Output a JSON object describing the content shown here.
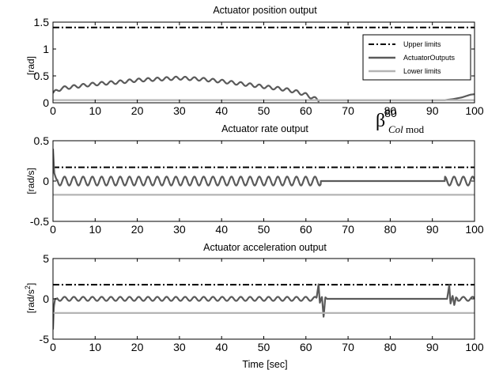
{
  "chart_data": [
    {
      "type": "line",
      "title": "Actuator position output",
      "ylabel": "[rad]",
      "xlabel": "",
      "xlim": [
        0,
        100
      ],
      "ylim": [
        0,
        1.5
      ],
      "xticks": [
        "0",
        "10",
        "20",
        "30",
        "40",
        "50",
        "60",
        "70",
        "80",
        "90",
        "100"
      ],
      "yticks": [
        "0",
        "0.5",
        "1",
        "1.5"
      ],
      "annotation": {
        "symbol": "β",
        "subscript": "Col",
        "subscript2": "mod",
        "text_x": 80
      },
      "legend": {
        "placement": "top-right",
        "entries": [
          "Upper limits",
          "ActuatorOutputs",
          "Lower limits"
        ]
      },
      "series": [
        {
          "name": "Upper limits",
          "style": "dashdot",
          "color": "#000000",
          "x": [
            0,
            100
          ],
          "y": [
            1.4,
            1.4
          ]
        },
        {
          "name": "ActuatorOutputs",
          "style": "solid",
          "color": "#5a5a5a",
          "x": [
            0,
            2,
            5,
            10,
            15,
            20,
            25,
            30,
            35,
            40,
            45,
            50,
            55,
            58,
            60,
            62,
            63,
            65,
            70,
            80,
            90,
            93,
            95,
            97,
            99,
            100
          ],
          "y": [
            0.18,
            0.27,
            0.3,
            0.35,
            0.38,
            0.42,
            0.44,
            0.46,
            0.44,
            0.4,
            0.35,
            0.3,
            0.25,
            0.2,
            0.15,
            0.08,
            0.05,
            0.05,
            0.05,
            0.05,
            0.05,
            0.05,
            0.07,
            0.1,
            0.15,
            0.16
          ],
          "osc": {
            "amplitude": 0.03,
            "period": 2.2,
            "x_from": 0,
            "x_to": 63
          }
        },
        {
          "name": "Lower limits",
          "style": "solid",
          "color": "#b4b4b4",
          "x": [
            0,
            100
          ],
          "y": [
            0.05,
            0.05
          ]
        }
      ]
    },
    {
      "type": "line",
      "title": "Actuator rate output",
      "ylabel": "[rad/s]",
      "xlabel": "",
      "xlim": [
        0,
        100
      ],
      "ylim": [
        -0.5,
        0.5
      ],
      "xticks": [
        "0",
        "10",
        "20",
        "30",
        "40",
        "50",
        "60",
        "70",
        "80",
        "90",
        "100"
      ],
      "yticks": [
        "-0.5",
        "0",
        "0.5"
      ],
      "series": [
        {
          "name": "Upper limits",
          "style": "dashdot",
          "color": "#000000",
          "x": [
            0,
            100
          ],
          "y": [
            0.17,
            0.17
          ]
        },
        {
          "name": "ActuatorOutputs",
          "style": "solid",
          "color": "#5a5a5a",
          "x": [
            0,
            0.3,
            0.6,
            1,
            63,
            64,
            93,
            100
          ],
          "y": [
            0.4,
            0.1,
            0.05,
            0.0,
            0.0,
            0.0,
            0.0,
            0.0
          ],
          "osc": {
            "amplitude": 0.055,
            "period": 2.2,
            "x_from": 1,
            "x_to": 63.5,
            "x2_from": 93,
            "x2_to": 100
          }
        },
        {
          "name": "Lower limits",
          "style": "solid",
          "color": "#b4b4b4",
          "x": [
            0,
            100
          ],
          "y": [
            -0.17,
            -0.17
          ]
        }
      ]
    },
    {
      "type": "line",
      "title": "Actuator acceleration output",
      "ylabel": "[rad/s",
      "ylabel_sup": "2",
      "ylabel_end": "]",
      "xlabel": "Time [sec]",
      "xlim": [
        0,
        100
      ],
      "ylim": [
        -5,
        5
      ],
      "xticks": [
        "0",
        "10",
        "20",
        "30",
        "40",
        "50",
        "60",
        "70",
        "80",
        "90",
        "100"
      ],
      "yticks": [
        "-5",
        "0",
        "5"
      ],
      "series": [
        {
          "name": "Upper limits",
          "style": "dashdot",
          "color": "#000000",
          "x": [
            0,
            100
          ],
          "y": [
            1.75,
            1.75
          ]
        },
        {
          "name": "ActuatorOutputs",
          "style": "solid",
          "color": "#5a5a5a",
          "x": [
            0,
            0.2,
            0.5,
            1,
            62.5,
            63,
            63.3,
            63.8,
            64.2,
            64.6,
            65,
            93.5,
            94,
            94.3,
            94.8,
            95.2,
            95.6,
            96,
            100
          ],
          "y": [
            -3.8,
            -1.0,
            0.0,
            0.0,
            0.0,
            1.8,
            -0.5,
            0.3,
            -2.3,
            0.2,
            0.0,
            0.0,
            1.7,
            -0.6,
            0.4,
            -0.8,
            0.2,
            0.0,
            0.0
          ],
          "osc": {
            "amplitude": 0.25,
            "period": 2.2,
            "x_from": 1,
            "x_to": 62.5,
            "x2_from": 96,
            "x2_to": 100
          }
        },
        {
          "name": "Lower limits",
          "style": "solid",
          "color": "#b4b4b4",
          "x": [
            0,
            100
          ],
          "y": [
            -1.75,
            -1.75
          ]
        }
      ]
    }
  ]
}
